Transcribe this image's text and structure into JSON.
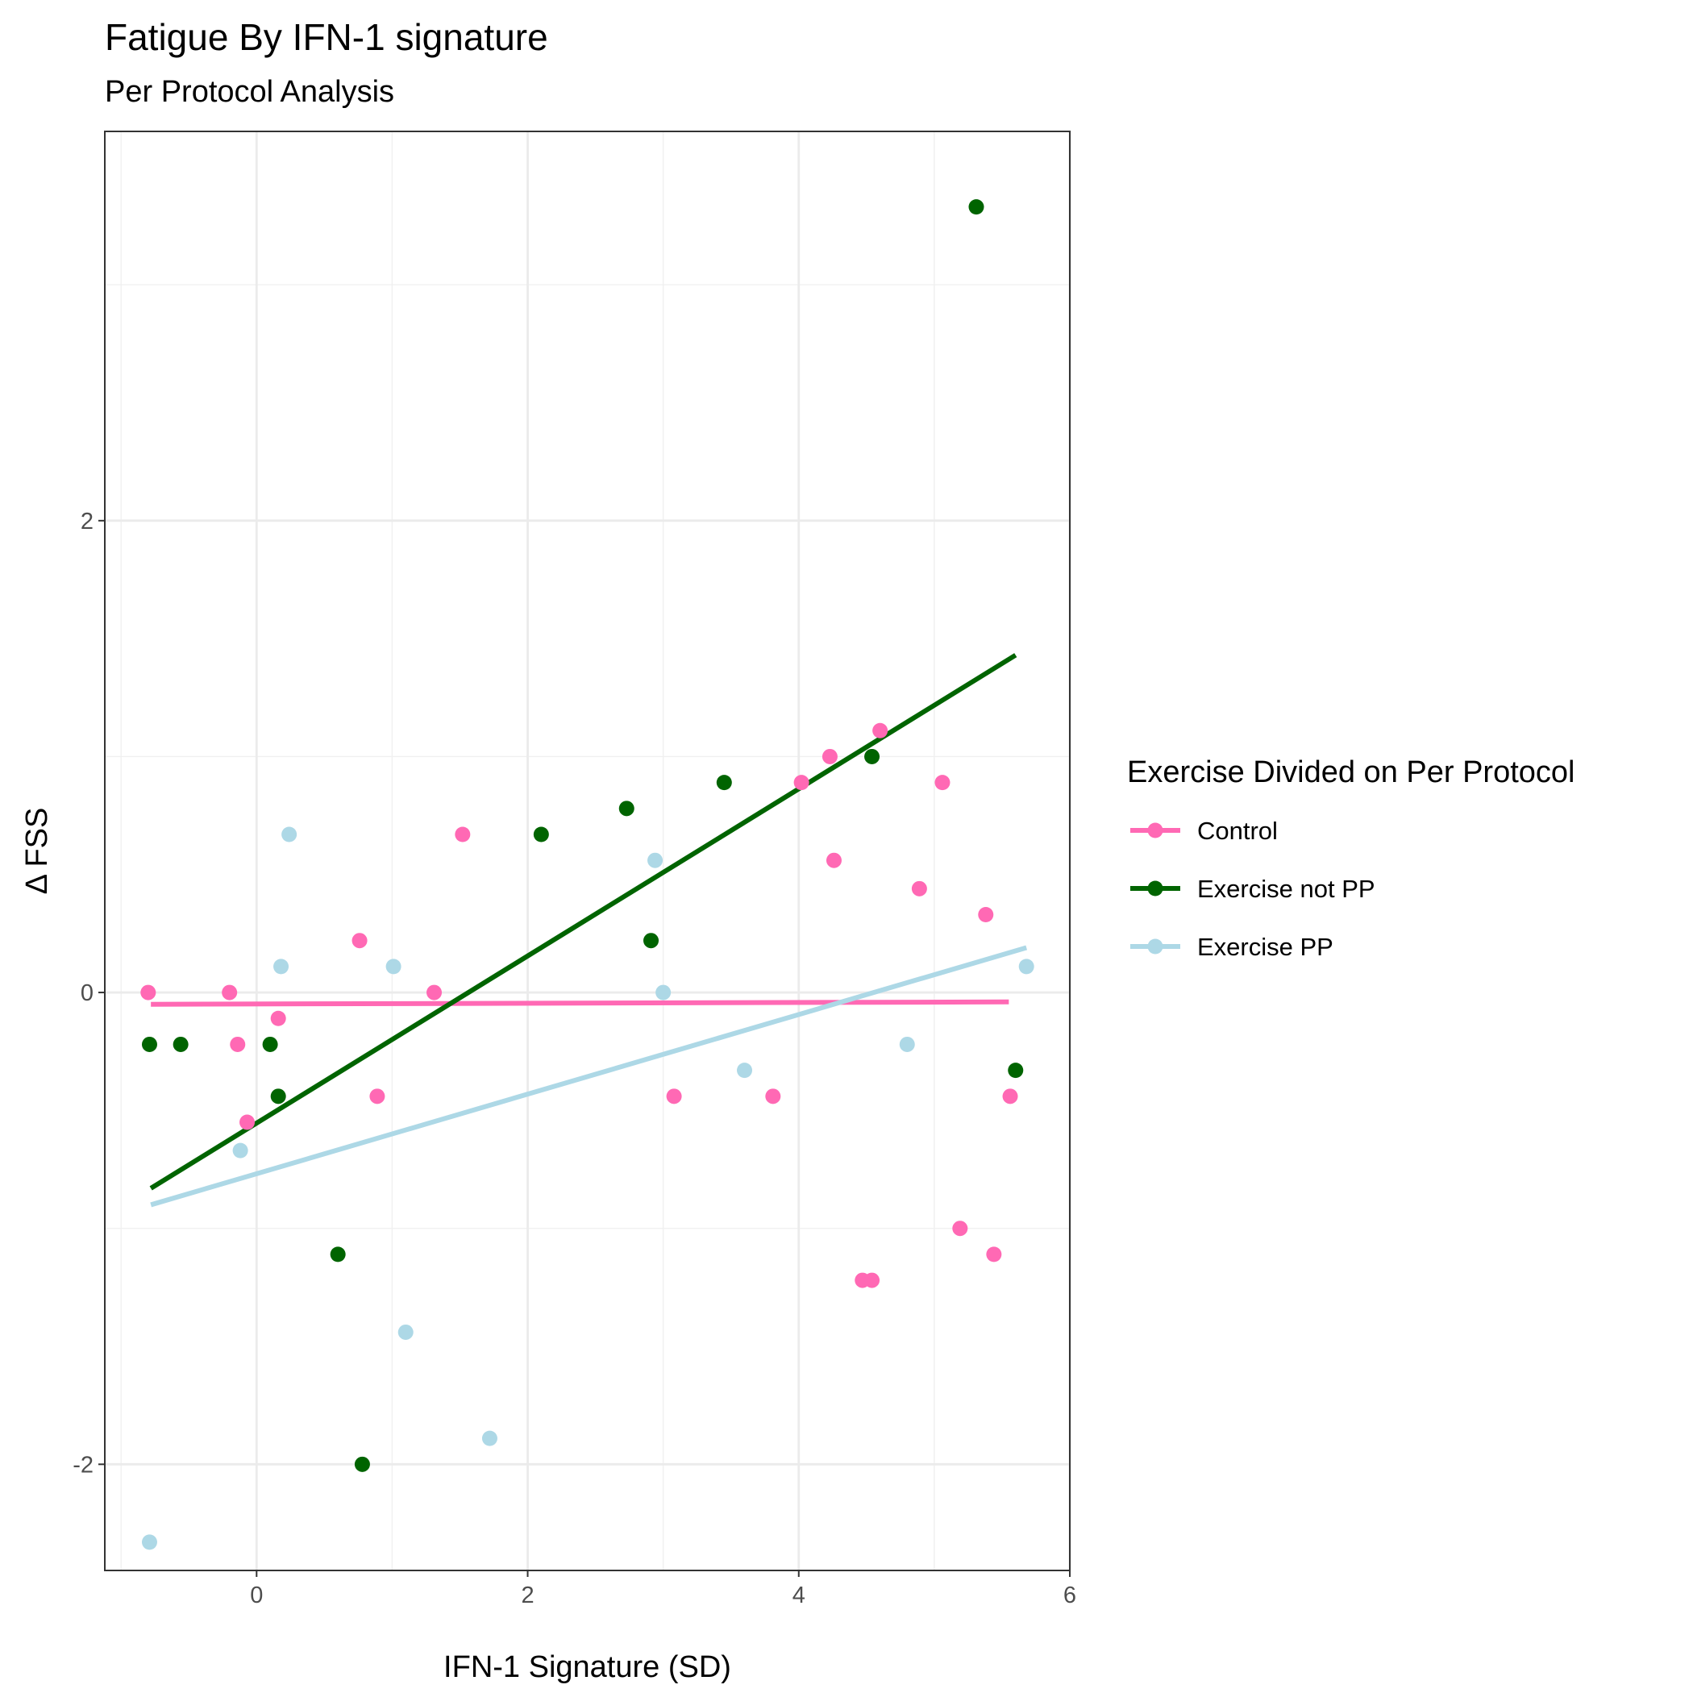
{
  "chart_data": {
    "type": "scatter",
    "title": "Fatigue By IFN-1 signature",
    "subtitle": "Per Protocol Analysis",
    "xlabel": "IFN-1 Signature (SD)",
    "ylabel": "Δ FSS",
    "xlim": [
      -1.12,
      6.0
    ],
    "ylim": [
      -2.45,
      3.65
    ],
    "x_ticks": [
      0,
      2,
      4,
      6
    ],
    "x_tick_labels": [
      "0",
      "2",
      "4",
      "6"
    ],
    "x_minor_ticks": [
      -1,
      1,
      3,
      5
    ],
    "y_ticks": [
      -2,
      0,
      2
    ],
    "y_tick_labels": [
      "-2",
      "0",
      "2"
    ],
    "y_minor_ticks": [
      -1,
      1,
      3
    ],
    "grid": true,
    "legend": {
      "title": "Exercise Divided on Per Protocol",
      "position": "right"
    },
    "series": [
      {
        "name": "Control",
        "color": "#ff69b4",
        "points": [
          {
            "x": -0.8,
            "y": 0.0
          },
          {
            "x": -0.2,
            "y": 0.0
          },
          {
            "x": -0.14,
            "y": -0.22
          },
          {
            "x": -0.07,
            "y": -0.55
          },
          {
            "x": 0.16,
            "y": -0.11
          },
          {
            "x": 0.76,
            "y": 0.22
          },
          {
            "x": 0.89,
            "y": -0.44
          },
          {
            "x": 1.31,
            "y": 0.0
          },
          {
            "x": 1.52,
            "y": 0.67
          },
          {
            "x": 3.08,
            "y": -0.44
          },
          {
            "x": 3.81,
            "y": -0.44
          },
          {
            "x": 4.02,
            "y": 0.89
          },
          {
            "x": 4.23,
            "y": 1.0
          },
          {
            "x": 4.26,
            "y": 0.56
          },
          {
            "x": 4.47,
            "y": -1.22
          },
          {
            "x": 4.54,
            "y": -1.22
          },
          {
            "x": 4.6,
            "y": 1.11
          },
          {
            "x": 4.89,
            "y": 0.44
          },
          {
            "x": 5.06,
            "y": 0.89
          },
          {
            "x": 5.19,
            "y": -1.0
          },
          {
            "x": 5.38,
            "y": 0.33
          },
          {
            "x": 5.44,
            "y": -1.11
          },
          {
            "x": 5.56,
            "y": -0.44
          }
        ],
        "fit_line": {
          "x": [
            -0.78,
            5.55
          ],
          "y": [
            -0.05,
            -0.04
          ]
        }
      },
      {
        "name": "Exercise not PP",
        "color": "#006400",
        "points": [
          {
            "x": -0.79,
            "y": -0.22
          },
          {
            "x": -0.56,
            "y": -0.22
          },
          {
            "x": 0.1,
            "y": -0.22
          },
          {
            "x": 0.16,
            "y": -0.44
          },
          {
            "x": 0.6,
            "y": -1.11
          },
          {
            "x": 0.78,
            "y": -2.0
          },
          {
            "x": 2.1,
            "y": 0.67
          },
          {
            "x": 2.73,
            "y": 0.78
          },
          {
            "x": 2.91,
            "y": 0.22
          },
          {
            "x": 3.45,
            "y": 0.89
          },
          {
            "x": 4.54,
            "y": 1.0
          },
          {
            "x": 5.31,
            "y": 3.33
          },
          {
            "x": 5.6,
            "y": -0.33
          }
        ],
        "fit_line": {
          "x": [
            -0.78,
            5.6
          ],
          "y": [
            -0.83,
            1.43
          ]
        }
      },
      {
        "name": "Exercise PP",
        "color": "#add8e6",
        "points": [
          {
            "x": -0.79,
            "y": -2.33
          },
          {
            "x": -0.12,
            "y": -0.67
          },
          {
            "x": 0.18,
            "y": 0.11
          },
          {
            "x": 0.24,
            "y": 0.67
          },
          {
            "x": 1.01,
            "y": 0.11
          },
          {
            "x": 1.1,
            "y": -1.44
          },
          {
            "x": 1.72,
            "y": -1.89
          },
          {
            "x": 2.94,
            "y": 0.56
          },
          {
            "x": 3.0,
            "y": 0.0
          },
          {
            "x": 3.6,
            "y": -0.33
          },
          {
            "x": 4.8,
            "y": -0.22
          },
          {
            "x": 5.68,
            "y": 0.11
          }
        ],
        "fit_line": {
          "x": [
            -0.78,
            5.68
          ],
          "y": [
            -0.9,
            0.19
          ]
        }
      }
    ]
  }
}
